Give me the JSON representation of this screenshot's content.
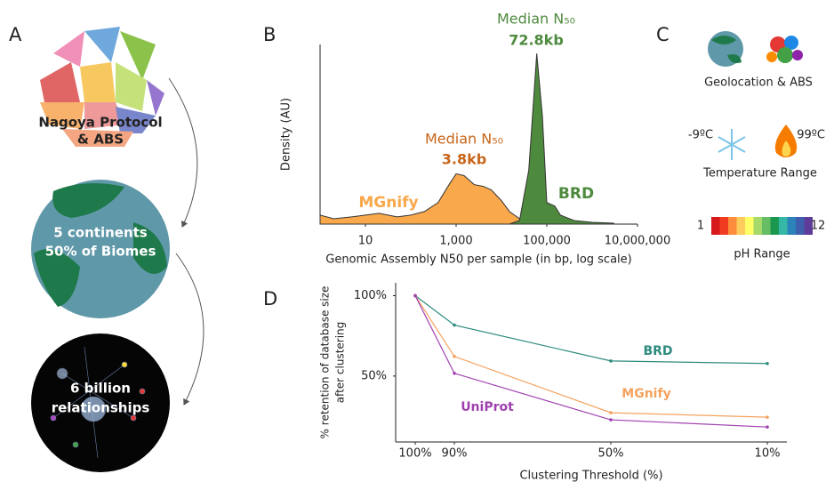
{
  "panels": {
    "a": "A",
    "b": "B",
    "c": "C",
    "d": "D"
  },
  "panel_a": {
    "labels": [
      [
        "Nagoya Protocol",
        "& ABS"
      ],
      [
        "5 continents",
        "50% of Biomes"
      ],
      [
        "6 billion",
        "relationships"
      ]
    ]
  },
  "panel_c": {
    "geolocation": "Geolocation & ABS",
    "temp_low": "-9ºC",
    "temp_high": "99ºC",
    "temp_label": "Temperature Range",
    "ph_low": 1,
    "ph_high": 12,
    "ph_label": "pH Range"
  },
  "chart_data": [
    {
      "type": "area",
      "xlabel": "Genomic Assembly N50 per sample (in bp, log scale)",
      "ylabel": "Density (AU)",
      "xscale": "log",
      "x": [
        1,
        2,
        5,
        10,
        20,
        50,
        100,
        200,
        400,
        700,
        1000,
        1500,
        2500,
        4000,
        6000,
        10000,
        15000,
        25000,
        40000,
        60000,
        80000,
        100000,
        150000,
        200000,
        400000,
        1000000,
        3000000
      ],
      "series": [
        {
          "name": "MGnify",
          "color": "#f9a94b",
          "values": [
            0.05,
            0.03,
            0.04,
            0.05,
            0.06,
            0.04,
            0.05,
            0.07,
            0.12,
            0.22,
            0.28,
            0.27,
            0.22,
            0.21,
            0.19,
            0.13,
            0.07,
            0.03,
            0.02,
            0.01,
            0.01,
            0.01,
            0.01,
            0.01,
            0.005,
            0.005,
            0
          ]
        },
        {
          "name": "BRD",
          "color": "#4e8a3e",
          "values": [
            0,
            0,
            0,
            0,
            0,
            0,
            0,
            0,
            0,
            0,
            0,
            0,
            0,
            0,
            0,
            0,
            0,
            0.02,
            0.3,
            0.95,
            0.6,
            0.12,
            0.1,
            0.05,
            0.02,
            0.01,
            0.005
          ]
        }
      ],
      "annotations": [
        {
          "title": "Median N₅₀",
          "label": "3.8kb"
        },
        {
          "title": "Median N₅₀",
          "label": "72.8kb"
        }
      ],
      "xlim": [
        1,
        10000000
      ],
      "xticks": [
        10,
        {
          "value": 1000,
          "label": "1,000"
        },
        {
          "value": 100000,
          "label": "100,000"
        },
        {
          "value": 10000000,
          "label": "10,000,000"
        }
      ],
      "ylim": [
        0,
        1
      ]
    },
    {
      "type": "line",
      "xlabel": "Clustering Threshold (%)",
      "ylabel": [
        "% retention of database size",
        "after clustering"
      ],
      "x": [
        100,
        90,
        50,
        10
      ],
      "series": [
        {
          "name": "BRD",
          "color": "#2e8b7e",
          "values": [
            100,
            81.7,
            59.4,
            57.8
          ]
        },
        {
          "name": "MGnify",
          "color": "#f5a25d",
          "values": [
            100,
            62.2,
            27.2,
            24.4
          ]
        },
        {
          "name": "UniProt",
          "color": "#a040b0",
          "values": [
            100,
            51.7,
            22.8,
            18.3
          ]
        }
      ],
      "xlim": [
        105,
        5
      ],
      "xticks": [
        {
          "value": 100,
          "label": "100%"
        },
        {
          "value": 90,
          "label": "90%"
        },
        {
          "value": 50,
          "label": "50%"
        },
        {
          "value": 10,
          "label": "10%"
        }
      ],
      "ylim": [
        9,
        108
      ],
      "yticks": [
        {
          "value": 50,
          "label": "50%"
        },
        {
          "value": 100,
          "label": "100%"
        }
      ]
    }
  ]
}
